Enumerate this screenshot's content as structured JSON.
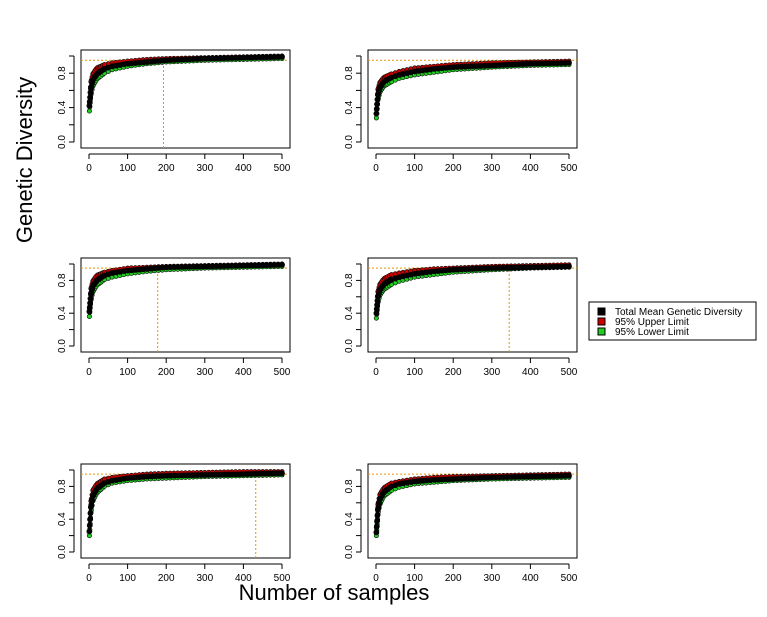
{
  "figure": {
    "ylabel": "Genetic Diversity",
    "xlabel": "Number of samples"
  },
  "legend": {
    "placement": "right",
    "entries": [
      {
        "label": "Total Mean Genetic Diversity",
        "color": "#000000"
      },
      {
        "label": "95% Upper Limit",
        "color": "#cc0000"
      },
      {
        "label": "95% Lower Limit",
        "color": "#22cc22"
      }
    ]
  },
  "colors": {
    "mean": "#000000",
    "upper": "#cc0000",
    "lower": "#22cc22",
    "reference": "#e69500"
  },
  "chart_data": [
    {
      "type": "line",
      "xlim": [
        0,
        500
      ],
      "ylim": [
        0,
        1
      ],
      "xticks": [
        0,
        100,
        200,
        300,
        400,
        500
      ],
      "yticks": [
        0.0,
        0.4,
        0.8
      ],
      "yticklabels": [
        "0.0",
        "0.4",
        "0.8"
      ],
      "reference_y": 0.95,
      "reference_x": 193,
      "series": [
        {
          "key": "mean",
          "x": [
            1,
            5,
            10,
            20,
            40,
            60,
            100,
            150,
            200,
            300,
            400,
            500
          ],
          "values": [
            0.42,
            0.62,
            0.72,
            0.79,
            0.85,
            0.88,
            0.91,
            0.93,
            0.95,
            0.97,
            0.98,
            0.99
          ]
        },
        {
          "key": "upper",
          "x": [
            1,
            5,
            10,
            20,
            40,
            60,
            100,
            150,
            200,
            300,
            400,
            500
          ],
          "values": [
            0.46,
            0.7,
            0.79,
            0.86,
            0.9,
            0.92,
            0.94,
            0.96,
            0.97,
            0.98,
            0.99,
            1.0
          ]
        },
        {
          "key": "lower",
          "x": [
            1,
            5,
            10,
            20,
            40,
            60,
            100,
            150,
            200,
            300,
            400,
            500
          ],
          "values": [
            0.36,
            0.55,
            0.65,
            0.73,
            0.8,
            0.84,
            0.88,
            0.91,
            0.93,
            0.95,
            0.96,
            0.97
          ]
        }
      ]
    },
    {
      "type": "line",
      "xlim": [
        0,
        500
      ],
      "ylim": [
        0,
        1
      ],
      "xticks": [
        0,
        100,
        200,
        300,
        400,
        500
      ],
      "yticks": [
        0.0,
        0.4,
        0.8
      ],
      "yticklabels": [
        "0.0",
        "0.4",
        "0.8"
      ],
      "reference_y": 0.95,
      "reference_x": null,
      "series": [
        {
          "key": "mean",
          "x": [
            1,
            5,
            10,
            20,
            40,
            60,
            100,
            150,
            200,
            300,
            400,
            500
          ],
          "values": [
            0.33,
            0.55,
            0.63,
            0.7,
            0.75,
            0.78,
            0.82,
            0.85,
            0.87,
            0.89,
            0.91,
            0.92
          ]
        },
        {
          "key": "upper",
          "x": [
            1,
            5,
            10,
            20,
            40,
            60,
            100,
            150,
            200,
            300,
            400,
            500
          ],
          "values": [
            0.38,
            0.61,
            0.69,
            0.75,
            0.79,
            0.82,
            0.86,
            0.88,
            0.9,
            0.92,
            0.93,
            0.94
          ]
        },
        {
          "key": "lower",
          "x": [
            1,
            5,
            10,
            20,
            40,
            60,
            100,
            150,
            200,
            300,
            400,
            500
          ],
          "values": [
            0.28,
            0.49,
            0.58,
            0.65,
            0.7,
            0.74,
            0.78,
            0.81,
            0.84,
            0.87,
            0.89,
            0.9
          ]
        }
      ]
    },
    {
      "type": "line",
      "xlim": [
        0,
        500
      ],
      "ylim": [
        0,
        1
      ],
      "xticks": [
        0,
        100,
        200,
        300,
        400,
        500
      ],
      "yticks": [
        0.0,
        0.4,
        0.8
      ],
      "yticklabels": [
        "0.0",
        "0.4",
        "0.8"
      ],
      "reference_y": 0.95,
      "reference_x": 178,
      "series": [
        {
          "key": "mean",
          "x": [
            1,
            5,
            10,
            20,
            40,
            60,
            100,
            150,
            200,
            300,
            400,
            500
          ],
          "values": [
            0.42,
            0.63,
            0.73,
            0.8,
            0.86,
            0.89,
            0.92,
            0.94,
            0.96,
            0.97,
            0.98,
            0.99
          ]
        },
        {
          "key": "upper",
          "x": [
            1,
            5,
            10,
            20,
            40,
            60,
            100,
            150,
            200,
            300,
            400,
            500
          ],
          "values": [
            0.46,
            0.7,
            0.79,
            0.86,
            0.9,
            0.92,
            0.95,
            0.96,
            0.97,
            0.98,
            0.99,
            1.0
          ]
        },
        {
          "key": "lower",
          "x": [
            1,
            5,
            10,
            20,
            40,
            60,
            100,
            150,
            200,
            300,
            400,
            500
          ],
          "values": [
            0.36,
            0.56,
            0.66,
            0.74,
            0.81,
            0.84,
            0.88,
            0.91,
            0.93,
            0.95,
            0.96,
            0.97
          ]
        }
      ]
    },
    {
      "type": "line",
      "xlim": [
        0,
        500
      ],
      "ylim": [
        0,
        1
      ],
      "xticks": [
        0,
        100,
        200,
        300,
        400,
        500
      ],
      "yticks": [
        0.0,
        0.4,
        0.8
      ],
      "yticklabels": [
        "0.0",
        "0.4",
        "0.8"
      ],
      "reference_y": 0.95,
      "reference_x": 345,
      "series": [
        {
          "key": "mean",
          "x": [
            1,
            5,
            10,
            20,
            40,
            60,
            100,
            150,
            200,
            300,
            400,
            500
          ],
          "values": [
            0.4,
            0.6,
            0.68,
            0.75,
            0.81,
            0.84,
            0.88,
            0.91,
            0.93,
            0.95,
            0.96,
            0.97
          ]
        },
        {
          "key": "upper",
          "x": [
            1,
            5,
            10,
            20,
            40,
            60,
            100,
            150,
            200,
            300,
            400,
            500
          ],
          "values": [
            0.45,
            0.66,
            0.75,
            0.82,
            0.87,
            0.89,
            0.92,
            0.94,
            0.95,
            0.97,
            0.98,
            0.99
          ]
        },
        {
          "key": "lower",
          "x": [
            1,
            5,
            10,
            20,
            40,
            60,
            100,
            150,
            200,
            300,
            400,
            500
          ],
          "values": [
            0.34,
            0.53,
            0.62,
            0.69,
            0.75,
            0.79,
            0.84,
            0.87,
            0.9,
            0.93,
            0.95,
            0.96
          ]
        }
      ]
    },
    {
      "type": "line",
      "xlim": [
        0,
        500
      ],
      "ylim": [
        0,
        1
      ],
      "xticks": [
        0,
        100,
        200,
        300,
        400,
        500
      ],
      "yticks": [
        0.0,
        0.4,
        0.8
      ],
      "yticklabels": [
        "0.0",
        "0.4",
        "0.8"
      ],
      "reference_y": 0.95,
      "reference_x": 432,
      "series": [
        {
          "key": "mean",
          "x": [
            1,
            5,
            10,
            20,
            40,
            60,
            100,
            150,
            200,
            300,
            400,
            500
          ],
          "values": [
            0.25,
            0.55,
            0.68,
            0.77,
            0.84,
            0.87,
            0.9,
            0.92,
            0.93,
            0.94,
            0.95,
            0.96
          ]
        },
        {
          "key": "upper",
          "x": [
            1,
            5,
            10,
            20,
            40,
            60,
            100,
            150,
            200,
            300,
            400,
            500
          ],
          "values": [
            0.32,
            0.62,
            0.75,
            0.83,
            0.89,
            0.91,
            0.93,
            0.95,
            0.96,
            0.97,
            0.98,
            0.98
          ]
        },
        {
          "key": "lower",
          "x": [
            1,
            5,
            10,
            20,
            40,
            60,
            100,
            150,
            200,
            300,
            400,
            500
          ],
          "values": [
            0.2,
            0.49,
            0.62,
            0.72,
            0.8,
            0.84,
            0.87,
            0.89,
            0.9,
            0.92,
            0.93,
            0.94
          ]
        }
      ]
    },
    {
      "type": "line",
      "xlim": [
        0,
        500
      ],
      "ylim": [
        0,
        1
      ],
      "xticks": [
        0,
        100,
        200,
        300,
        400,
        500
      ],
      "yticks": [
        0.0,
        0.4,
        0.8
      ],
      "yticklabels": [
        "0.0",
        "0.4",
        "0.8"
      ],
      "reference_y": 0.95,
      "reference_x": null,
      "series": [
        {
          "key": "mean",
          "x": [
            1,
            5,
            10,
            20,
            40,
            60,
            100,
            150,
            200,
            300,
            400,
            500
          ],
          "values": [
            0.24,
            0.52,
            0.64,
            0.73,
            0.8,
            0.83,
            0.86,
            0.88,
            0.89,
            0.91,
            0.92,
            0.93
          ]
        },
        {
          "key": "upper",
          "x": [
            1,
            5,
            10,
            20,
            40,
            60,
            100,
            150,
            200,
            300,
            400,
            500
          ],
          "values": [
            0.3,
            0.58,
            0.7,
            0.78,
            0.84,
            0.86,
            0.89,
            0.91,
            0.92,
            0.93,
            0.94,
            0.95
          ]
        },
        {
          "key": "lower",
          "x": [
            1,
            5,
            10,
            20,
            40,
            60,
            100,
            150,
            200,
            300,
            400,
            500
          ],
          "values": [
            0.2,
            0.47,
            0.58,
            0.68,
            0.75,
            0.79,
            0.83,
            0.85,
            0.87,
            0.89,
            0.9,
            0.91
          ]
        }
      ]
    }
  ]
}
